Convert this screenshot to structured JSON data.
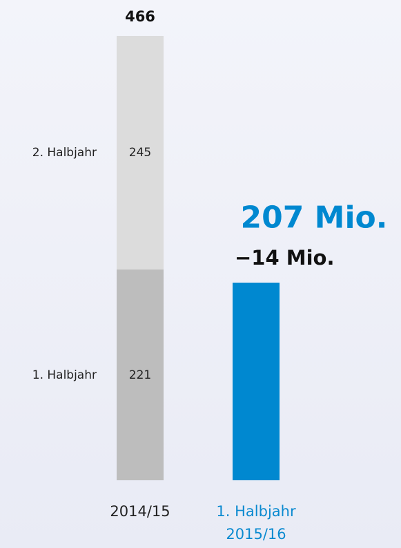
{
  "chart_data": {
    "type": "stacked_bar",
    "categories": [
      "2014/15",
      "1. Halbjahr 2015/16"
    ],
    "label_colors": [
      "#222222",
      "#0a8ad0"
    ],
    "series": [
      {
        "name": "1. Halbjahr",
        "colors": [
          "#bdbdbd",
          "#0088d0"
        ],
        "values": [
          221,
          207
        ],
        "value_labels": [
          "221",
          "207 Mio."
        ]
      },
      {
        "name": "2. Halbjahr",
        "colors": [
          "#dcdcdc",
          "#dcdcdc"
        ],
        "values": [
          245,
          null
        ]
      }
    ],
    "totals": [
      466,
      null
    ],
    "annotation": {
      "value": -14,
      "label": "−14 Mio."
    },
    "ylim": [
      0,
      466
    ]
  }
}
